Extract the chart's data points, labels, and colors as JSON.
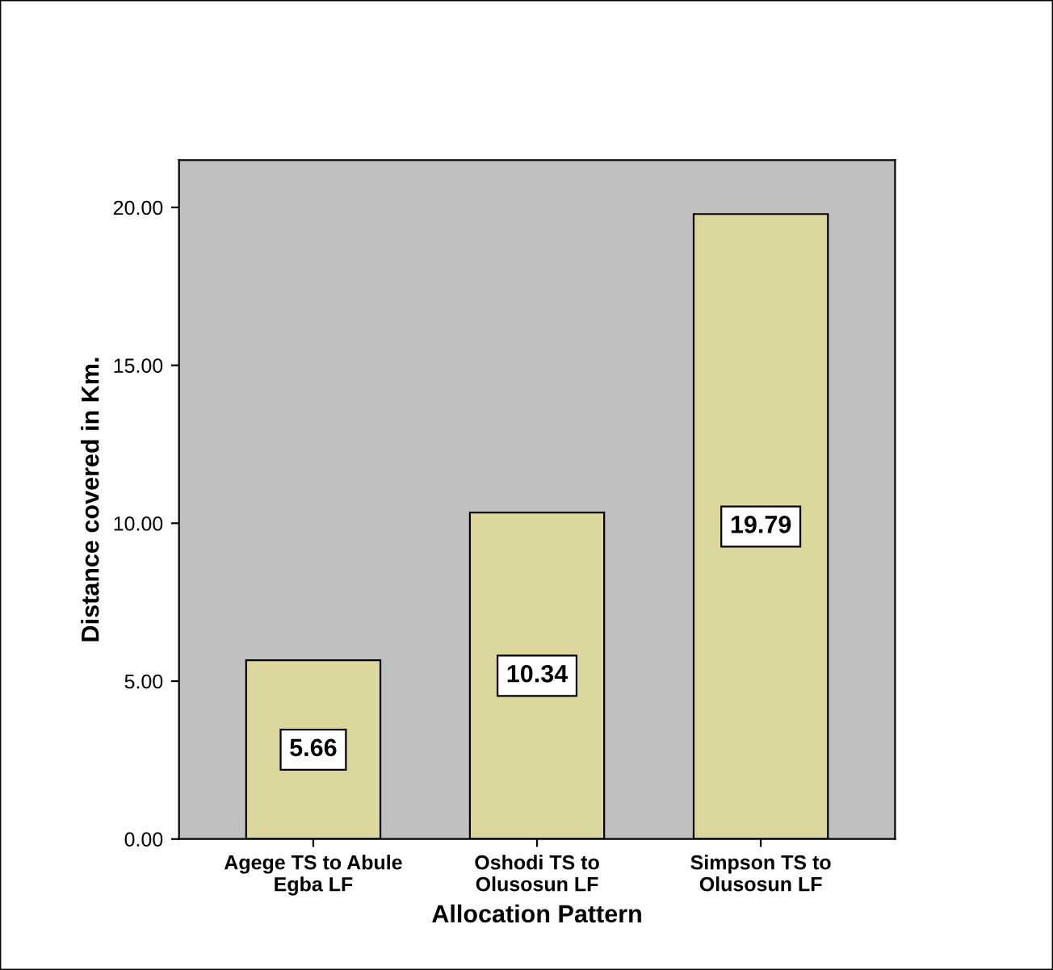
{
  "chart_data": {
    "type": "bar",
    "xlabel": "Allocation Pattern",
    "ylabel": "Distance covered in Km.",
    "categories": [
      "Agege TS to Abule\nEgba LF",
      "Oshodi TS to\nOlusosun LF",
      "Simpson TS to\nOlusosun LF"
    ],
    "values": [
      5.66,
      10.34,
      19.79
    ],
    "color": "#dcd79c",
    "data_labels": true,
    "ylim": [
      0,
      21.5
    ],
    "yticks": [
      {
        "value": 0,
        "label": "0.00"
      },
      {
        "value": 5,
        "label": "5.00"
      },
      {
        "value": 10,
        "label": "10.00"
      },
      {
        "value": 15,
        "label": "15.00"
      },
      {
        "value": 20,
        "label": "20.00"
      }
    ],
    "grid": false
  }
}
